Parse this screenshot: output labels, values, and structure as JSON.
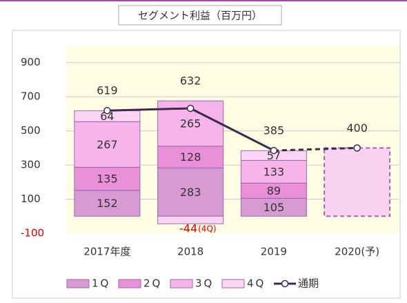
{
  "chart_data": {
    "type": "stacked-bar-line",
    "title": "セグメント利益（百万円）",
    "categories": [
      "2017年度",
      "2018",
      "2019",
      "2020(予)"
    ],
    "projected": [
      false,
      false,
      false,
      true
    ],
    "series": [
      {
        "name": "1Q",
        "color": "#d89ad2",
        "values": [
          152,
          283,
          105,
          null
        ]
      },
      {
        "name": "2Q",
        "color": "#ea90d8",
        "values": [
          135,
          128,
          89,
          null
        ]
      },
      {
        "name": "3Q",
        "color": "#f6b4ea",
        "values": [
          267,
          265,
          133,
          null
        ]
      },
      {
        "name": "4Q",
        "color": "#fbd6f4",
        "values": [
          64,
          -44,
          57,
          null
        ]
      },
      {
        "name": "通期",
        "color": "#3b2a4d",
        "type": "line",
        "values": [
          619,
          632,
          385,
          400
        ]
      }
    ],
    "annotations": [
      {
        "text": "(4Q)",
        "series": 3,
        "category": 1
      }
    ],
    "ylim": [
      -100,
      1000
    ],
    "yticks": [
      -100,
      100,
      300,
      500,
      700,
      900
    ],
    "grid": true
  }
}
